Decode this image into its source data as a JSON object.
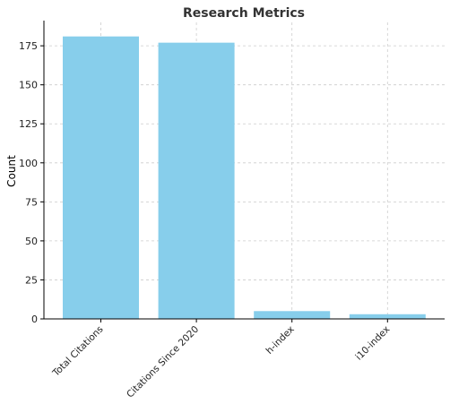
{
  "chart_data": {
    "type": "bar",
    "title": "Research Metrics",
    "xlabel": "",
    "ylabel": "Count",
    "categories": [
      "Total Citations",
      "Citations Since 2020",
      "h-index",
      "i10-index"
    ],
    "values": [
      181,
      177,
      5,
      3
    ],
    "ylim": [
      0,
      190
    ],
    "yticks": [
      0,
      25,
      50,
      75,
      100,
      125,
      150,
      175
    ],
    "grid": true,
    "bar_color": "#87CEEB",
    "grid_color": "#cccccc",
    "axis_color": "#000000"
  }
}
